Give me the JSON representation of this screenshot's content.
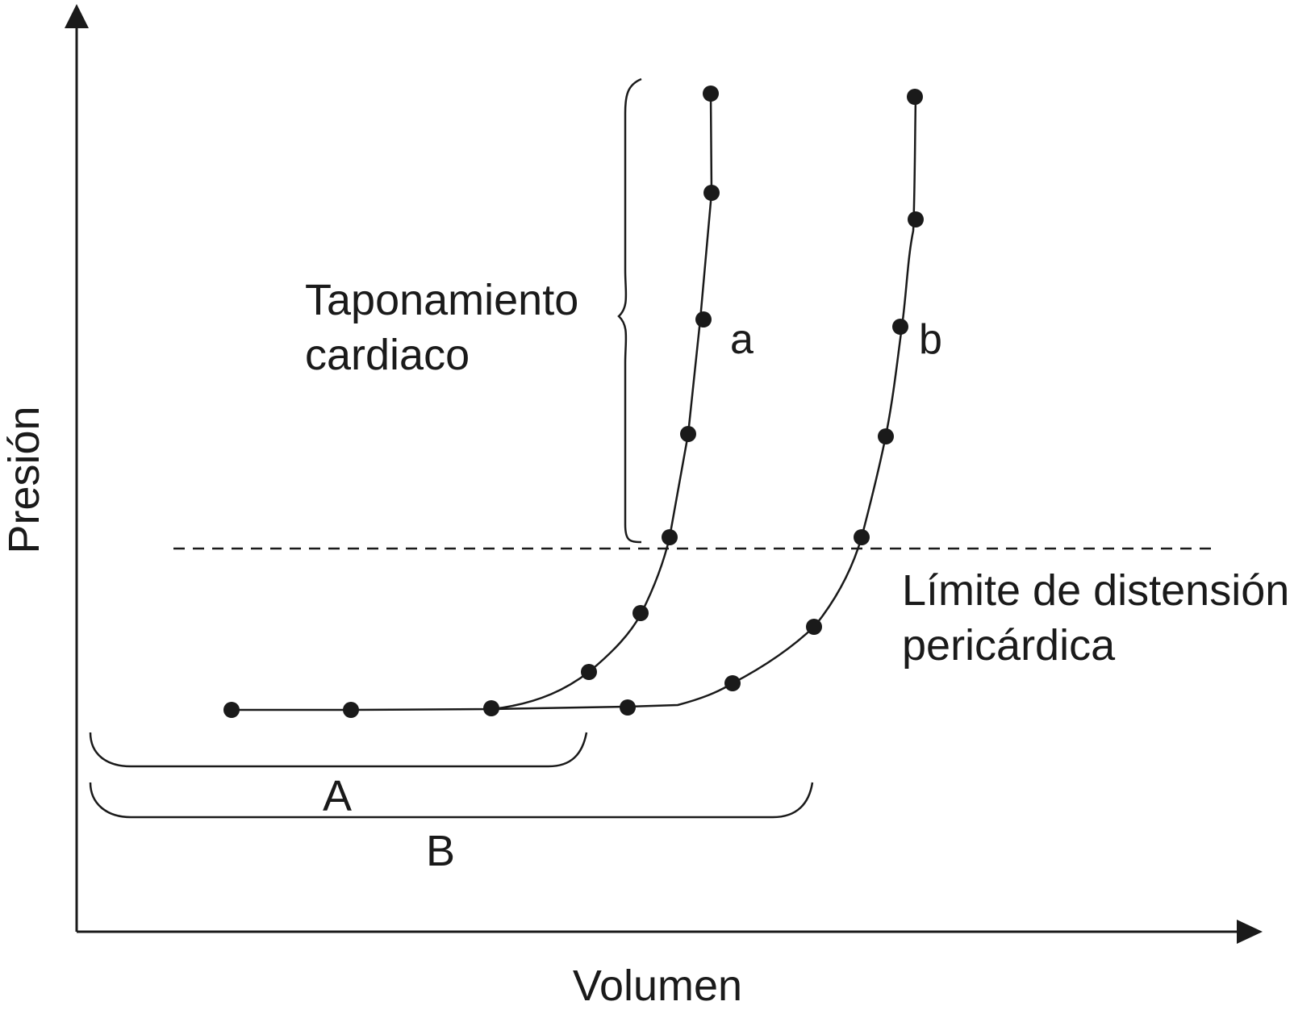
{
  "axes": {
    "x_label": "Volumen",
    "y_label": "Presión"
  },
  "curves": [
    {
      "id": "a",
      "label": "a"
    },
    {
      "id": "b",
      "label": "b"
    }
  ],
  "annotations": {
    "tamponade_line1": "Taponamiento",
    "tamponade_line2": "cardiaco",
    "limit_line1": "Límite de distensión",
    "limit_line2": "pericárdica",
    "range_A": "A",
    "range_B": "B"
  },
  "colors": {
    "ink": "#1a1a1a",
    "background": "#ffffff"
  }
}
